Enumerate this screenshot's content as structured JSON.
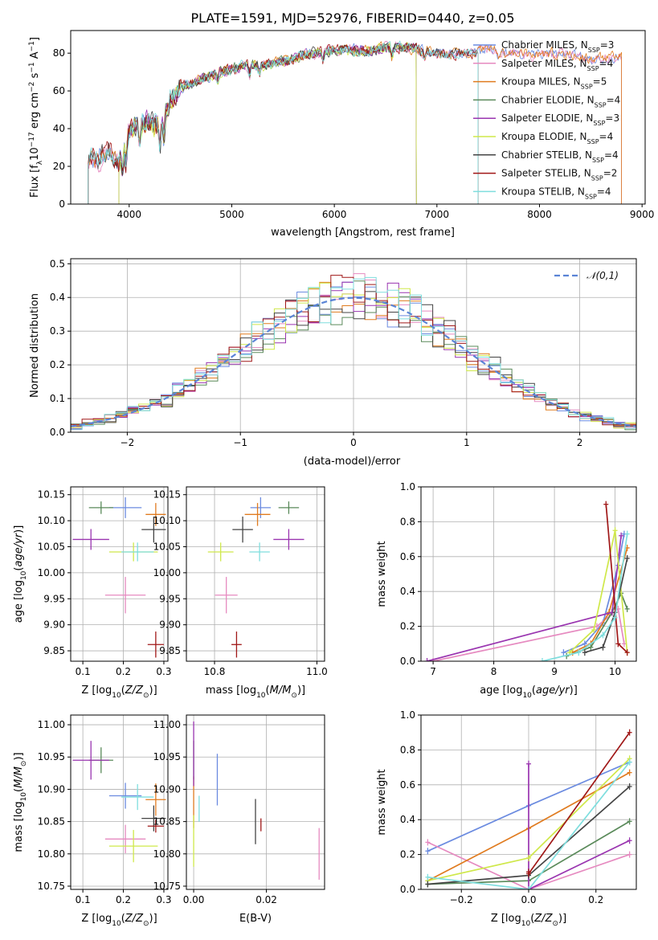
{
  "title": "PLATE=1591, MJD=52976, FIBERID=0440, z=0.05",
  "colors": {
    "Chabrier MILES": "#6b8be0",
    "Salpeter MILES": "#e68ac0",
    "Kroupa MILES": "#e07b1f",
    "Chabrier ELODIE": "#5a8a5a",
    "Salpeter ELODIE": "#9a35b0",
    "Kroupa ELODIE": "#cfe84a",
    "Chabrier STELIB": "#444444",
    "Salpeter STELIB": "#a01818",
    "Kroupa STELIB": "#7fdede"
  },
  "chart_data": [
    {
      "type": "line",
      "title": "PLATE=1591, MJD=52976, FIBERID=0440, z=0.05",
      "xlabel": "wavelength [Angstrom, rest frame]",
      "ylabel": "Flux [f_λ 10^-17 erg cm^-2 s^-1 A^-1]",
      "xlim": [
        3430,
        9030
      ],
      "ylim": [
        0,
        92
      ],
      "xticks": [
        "4000",
        "5000",
        "6000",
        "7000",
        "8000",
        "9000"
      ],
      "yticks": [
        "0",
        "20",
        "40",
        "60",
        "80"
      ],
      "legend_position": "right",
      "grid": false,
      "series": [
        {
          "name": "Chabrier MILES, N_SSP=3",
          "model": "Chabrier MILES",
          "x_range": [
            3600,
            8800
          ]
        },
        {
          "name": "Salpeter MILES, N_SSP=4",
          "model": "Salpeter MILES",
          "x_range": [
            3600,
            8800
          ]
        },
        {
          "name": "Kroupa MILES, N_SSP=5",
          "model": "Kroupa MILES",
          "x_range": [
            3600,
            8800
          ]
        },
        {
          "name": "Chabrier ELODIE, N_SSP=4",
          "model": "Chabrier ELODIE",
          "x_range": [
            3900,
            6800
          ]
        },
        {
          "name": "Salpeter ELODIE, N_SSP=3",
          "model": "Salpeter ELODIE",
          "x_range": [
            3900,
            6800
          ]
        },
        {
          "name": "Kroupa ELODIE, N_SSP=4",
          "model": "Kroupa ELODIE",
          "x_range": [
            3900,
            6800
          ]
        },
        {
          "name": "Chabrier STELIB, N_SSP=4",
          "model": "Chabrier STELIB",
          "x_range": [
            3600,
            7400
          ]
        },
        {
          "name": "Salpeter STELIB, N_SSP=2",
          "model": "Salpeter STELIB",
          "x_range": [
            3600,
            7400
          ]
        },
        {
          "name": "Kroupa STELIB, N_SSP=4",
          "model": "Kroupa STELIB",
          "x_range": [
            3600,
            7400
          ]
        }
      ],
      "continuum": {
        "x": [
          3600,
          3700,
          3800,
          3900,
          4000,
          4100,
          4200,
          4300,
          4400,
          4500,
          4700,
          4900,
          5100,
          5300,
          5500,
          5700,
          5900,
          6100,
          6300,
          6500,
          6700,
          6900,
          7100,
          7300,
          7500,
          7700,
          7900,
          8100,
          8300,
          8500,
          8800
        ],
        "y": [
          25,
          24,
          28,
          22,
          38,
          43,
          44,
          40,
          55,
          62,
          66,
          70,
          73,
          74,
          75,
          79,
          81,
          82,
          81,
          83,
          83,
          81,
          79,
          80,
          82,
          80,
          79,
          80,
          79,
          77,
          78
        ]
      }
    },
    {
      "type": "bar",
      "subtype": "step histogram",
      "xlabel": "(data-model)/error",
      "ylabel": "Normed distribution",
      "xlim": [
        -2.5,
        2.5
      ],
      "ylim": [
        0,
        0.515
      ],
      "xticks": [
        "−2",
        "−1",
        "0",
        "1",
        "2"
      ],
      "yticks": [
        "0.0",
        "0.1",
        "0.2",
        "0.3",
        "0.4",
        "0.5"
      ],
      "grid": true,
      "bins": [
        -2.5,
        -2.4,
        -2.3,
        -2.2,
        -2.1,
        -2.0,
        -1.9,
        -1.8,
        -1.7,
        -1.6,
        -1.5,
        -1.4,
        -1.3,
        -1.2,
        -1.1,
        -1.0,
        -0.9,
        -0.8,
        -0.7,
        -0.6,
        -0.5,
        -0.4,
        -0.3,
        -0.2,
        -0.1,
        0.0,
        0.1,
        0.2,
        0.3,
        0.4,
        0.5,
        0.6,
        0.7,
        0.8,
        0.9,
        1.0,
        1.1,
        1.2,
        1.3,
        1.4,
        1.5,
        1.6,
        1.7,
        1.8,
        1.9,
        2.0,
        2.1,
        2.2,
        2.3,
        2.4,
        2.5
      ],
      "series_models": [
        "Chabrier MILES",
        "Salpeter MILES",
        "Kroupa MILES",
        "Chabrier ELODIE",
        "Salpeter ELODIE",
        "Kroupa ELODIE",
        "Chabrier STELIB",
        "Salpeter STELIB",
        "Kroupa STELIB"
      ],
      "reference": {
        "name": "𝒩(0,1)",
        "mean": 0,
        "sigma": 1,
        "style": "dashed"
      },
      "legend_position": "top-right"
    },
    {
      "type": "scatter",
      "xlabel": "Z [log10(Z/Z⊙)]",
      "ylabel": "age  [log10(age/yr)]",
      "xlim": [
        0.07,
        0.31
      ],
      "ylim": [
        9.83,
        10.165
      ],
      "xticks": [
        "0.1",
        "0.2",
        "0.3"
      ],
      "yticks": [
        "9.85",
        "9.90",
        "9.95",
        "10.00",
        "10.05",
        "10.10",
        "10.15"
      ],
      "grid": true,
      "points": [
        {
          "model": "Chabrier MILES",
          "x": 0.205,
          "xerr": 0.04,
          "y": 10.125,
          "yerr": 0.02
        },
        {
          "model": "Salpeter MILES",
          "x": 0.205,
          "xerr": 0.05,
          "y": 9.957,
          "yerr": 0.035
        },
        {
          "model": "Kroupa MILES",
          "x": 0.28,
          "xerr": 0.025,
          "y": 10.112,
          "yerr": 0.022
        },
        {
          "model": "Chabrier ELODIE",
          "x": 0.145,
          "xerr": 0.03,
          "y": 10.125,
          "yerr": 0.012
        },
        {
          "model": "Salpeter ELODIE",
          "x": 0.12,
          "xerr": 0.045,
          "y": 10.064,
          "yerr": 0.02
        },
        {
          "model": "Kroupa ELODIE",
          "x": 0.225,
          "xerr": 0.06,
          "y": 10.04,
          "yerr": 0.018
        },
        {
          "model": "Chabrier STELIB",
          "x": 0.275,
          "xerr": 0.03,
          "y": 10.083,
          "yerr": 0.025
        },
        {
          "model": "Salpeter STELIB",
          "x": 0.28,
          "xerr": 0.02,
          "y": 9.862,
          "yerr": 0.025
        },
        {
          "model": "Kroupa STELIB",
          "x": 0.235,
          "xerr": 0.04,
          "y": 10.04,
          "yerr": 0.018
        }
      ]
    },
    {
      "type": "scatter",
      "xlabel": "mass [log10(M/M⊙)]",
      "ylabel": "",
      "xlim": [
        10.745,
        11.015
      ],
      "ylim": [
        9.83,
        10.165
      ],
      "xticks": [
        "10.8",
        "11.0"
      ],
      "yticks": [
        "9.85",
        "9.90",
        "9.95",
        "10.00",
        "10.05",
        "10.10",
        "10.15"
      ],
      "grid": true,
      "points": [
        {
          "model": "Chabrier MILES",
          "x": 10.89,
          "xerr": 0.02,
          "y": 10.125,
          "yerr": 0.02
        },
        {
          "model": "Salpeter MILES",
          "x": 10.823,
          "xerr": 0.022,
          "y": 9.957,
          "yerr": 0.035
        },
        {
          "model": "Kroupa MILES",
          "x": 10.884,
          "xerr": 0.025,
          "y": 10.112,
          "yerr": 0.022
        },
        {
          "model": "Chabrier ELODIE",
          "x": 10.945,
          "xerr": 0.02,
          "y": 10.125,
          "yerr": 0.012
        },
        {
          "model": "Salpeter ELODIE",
          "x": 10.945,
          "xerr": 0.03,
          "y": 10.064,
          "yerr": 0.02
        },
        {
          "model": "Kroupa ELODIE",
          "x": 10.812,
          "xerr": 0.025,
          "y": 10.04,
          "yerr": 0.018
        },
        {
          "model": "Chabrier STELIB",
          "x": 10.855,
          "xerr": 0.02,
          "y": 10.083,
          "yerr": 0.025
        },
        {
          "model": "Salpeter STELIB",
          "x": 10.843,
          "xerr": 0.01,
          "y": 9.862,
          "yerr": 0.025
        },
        {
          "model": "Kroupa STELIB",
          "x": 10.888,
          "xerr": 0.02,
          "y": 10.04,
          "yerr": 0.018
        }
      ]
    },
    {
      "type": "line",
      "xlabel": "age  [log10(age/yr)]",
      "ylabel": "mass weight",
      "xlim": [
        6.8,
        10.35
      ],
      "ylim": [
        0,
        1.0
      ],
      "xticks": [
        "7",
        "8",
        "9",
        "10"
      ],
      "yticks": [
        "0.0",
        "0.2",
        "0.4",
        "0.6",
        "0.8",
        "1.0"
      ],
      "grid": true,
      "series": [
        {
          "model": "Chabrier MILES",
          "x": [
            9.15,
            9.5,
            9.8,
            10.05,
            10.15
          ],
          "y": [
            0.05,
            0.1,
            0.22,
            0.55,
            0.73
          ]
        },
        {
          "model": "Salpeter MILES",
          "x": [
            7.0,
            9.7,
            10.05,
            10.15
          ],
          "y": [
            0.0,
            0.2,
            0.3,
            0.1
          ]
        },
        {
          "model": "Kroupa MILES",
          "x": [
            9.3,
            9.6,
            9.9,
            10.2
          ],
          "y": [
            0.05,
            0.1,
            0.28,
            0.65
          ]
        },
        {
          "model": "Chabrier ELODIE",
          "x": [
            9.2,
            9.6,
            9.95,
            10.1,
            10.2
          ],
          "y": [
            0.03,
            0.08,
            0.28,
            0.39,
            0.3
          ]
        },
        {
          "model": "Salpeter ELODIE",
          "x": [
            6.9,
            9.95,
            10.1
          ],
          "y": [
            0.0,
            0.28,
            0.72
          ]
        },
        {
          "model": "Kroupa ELODIE",
          "x": [
            9.25,
            9.65,
            10.0,
            10.2
          ],
          "y": [
            0.05,
            0.18,
            0.75,
            0.05
          ]
        },
        {
          "model": "Chabrier STELIB",
          "x": [
            9.5,
            9.8,
            10.0,
            10.2
          ],
          "y": [
            0.05,
            0.08,
            0.28,
            0.59
          ]
        },
        {
          "model": "Salpeter STELIB",
          "x": [
            9.85,
            10.05,
            10.2
          ],
          "y": [
            0.9,
            0.1,
            0.05
          ]
        },
        {
          "model": "Kroupa STELIB",
          "x": [
            8.8,
            9.4,
            9.8,
            10.0,
            10.2
          ],
          "y": [
            0.0,
            0.05,
            0.15,
            0.25,
            0.73
          ]
        }
      ]
    },
    {
      "type": "scatter",
      "xlabel": "Z [log10(Z/Z⊙)]",
      "ylabel": "mass [log10(M/M⊙)]",
      "xlim": [
        0.07,
        0.31
      ],
      "ylim": [
        10.745,
        11.015
      ],
      "xticks": [
        "0.1",
        "0.2",
        "0.3"
      ],
      "yticks": [
        "10.75",
        "10.80",
        "10.85",
        "10.90",
        "10.95",
        "11.00"
      ],
      "grid": true,
      "points": [
        {
          "model": "Chabrier MILES",
          "x": 0.205,
          "xerr": 0.04,
          "y": 10.89,
          "yerr": 0.02
        },
        {
          "model": "Salpeter MILES",
          "x": 0.205,
          "xerr": 0.05,
          "y": 10.823,
          "yerr": 0.022
        },
        {
          "model": "Kroupa MILES",
          "x": 0.28,
          "xerr": 0.025,
          "y": 10.884,
          "yerr": 0.025
        },
        {
          "model": "Chabrier ELODIE",
          "x": 0.145,
          "xerr": 0.03,
          "y": 10.945,
          "yerr": 0.02
        },
        {
          "model": "Salpeter ELODIE",
          "x": 0.12,
          "xerr": 0.045,
          "y": 10.945,
          "yerr": 0.03
        },
        {
          "model": "Kroupa ELODIE",
          "x": 0.225,
          "xerr": 0.06,
          "y": 10.812,
          "yerr": 0.025
        },
        {
          "model": "Chabrier STELIB",
          "x": 0.275,
          "xerr": 0.03,
          "y": 10.855,
          "yerr": 0.02
        },
        {
          "model": "Salpeter STELIB",
          "x": 0.28,
          "xerr": 0.02,
          "y": 10.843,
          "yerr": 0.01
        },
        {
          "model": "Kroupa STELIB",
          "x": 0.235,
          "xerr": 0.04,
          "y": 10.888,
          "yerr": 0.02
        }
      ]
    },
    {
      "type": "scatter",
      "xlabel": "E(B-V)",
      "ylabel": "",
      "xlim": [
        -0.002,
        0.036
      ],
      "ylim": [
        10.745,
        11.015
      ],
      "xticks": [
        "0.00",
        "0.02"
      ],
      "yticks": [
        "10.75",
        "10.80",
        "10.85",
        "10.90",
        "10.95",
        "11.00"
      ],
      "grid": true,
      "points": [
        {
          "model": "Chabrier MILES",
          "x": 0.0065,
          "y": 10.915,
          "yerr": 0.04
        },
        {
          "model": "Salpeter MILES",
          "x": 0.0345,
          "y": 10.8,
          "yerr": 0.04
        },
        {
          "model": "Kroupa MILES",
          "x": 0.0,
          "y": 10.88,
          "yerr": 0.04
        },
        {
          "model": "Chabrier ELODIE",
          "x": 0.0,
          "y": 10.945,
          "yerr": 0.03
        },
        {
          "model": "Salpeter ELODIE",
          "x": 0.0,
          "y": 10.955,
          "yerr": 0.05
        },
        {
          "model": "Kroupa ELODIE",
          "x": 0.0,
          "y": 10.82,
          "yerr": 0.04
        },
        {
          "model": "Chabrier STELIB",
          "x": 0.017,
          "y": 10.85,
          "yerr": 0.035
        },
        {
          "model": "Salpeter STELIB",
          "x": 0.0185,
          "y": 10.845,
          "yerr": 0.01
        },
        {
          "model": "Kroupa STELIB",
          "x": 0.0015,
          "y": 10.87,
          "yerr": 0.02
        }
      ]
    },
    {
      "type": "line",
      "xlabel": "Z [log10(Z/Z⊙)]",
      "ylabel": "mass weight",
      "xlim": [
        -0.32,
        0.32
      ],
      "ylim": [
        0,
        1.0
      ],
      "xticks": [
        "−0.2",
        "0.0",
        "0.2"
      ],
      "yticks": [
        "0.0",
        "0.2",
        "0.4",
        "0.6",
        "0.8",
        "1.0"
      ],
      "grid": true,
      "series": [
        {
          "model": "Chabrier MILES",
          "x": [
            -0.3,
            0.0,
            0.3
          ],
          "y": [
            0.22,
            0.48,
            0.73
          ]
        },
        {
          "model": "Salpeter MILES",
          "x": [
            -0.3,
            0.0,
            0.3
          ],
          "y": [
            0.27,
            0.0,
            0.2
          ]
        },
        {
          "model": "Kroupa MILES",
          "x": [
            -0.3,
            0.0,
            0.3
          ],
          "y": [
            0.05,
            0.35,
            0.67
          ]
        },
        {
          "model": "Chabrier ELODIE",
          "x": [
            -0.3,
            0.0,
            0.3
          ],
          "y": [
            0.03,
            0.05,
            0.39
          ]
        },
        {
          "model": "Salpeter ELODIE",
          "x": [
            0.0,
            0.0,
            0.3
          ],
          "y": [
            0.72,
            0.0,
            0.28
          ]
        },
        {
          "model": "Kroupa ELODIE",
          "x": [
            -0.3,
            0.0,
            0.3
          ],
          "y": [
            0.05,
            0.18,
            0.75
          ]
        },
        {
          "model": "Chabrier STELIB",
          "x": [
            -0.3,
            0.0,
            0.3
          ],
          "y": [
            0.03,
            0.08,
            0.59
          ]
        },
        {
          "model": "Salpeter STELIB",
          "x": [
            0.0,
            0.0,
            0.3
          ],
          "y": [
            0.1,
            0.09,
            0.9
          ]
        },
        {
          "model": "Kroupa STELIB",
          "x": [
            -0.3,
            0.0,
            0.3
          ],
          "y": [
            0.07,
            0.0,
            0.73
          ]
        }
      ]
    }
  ]
}
